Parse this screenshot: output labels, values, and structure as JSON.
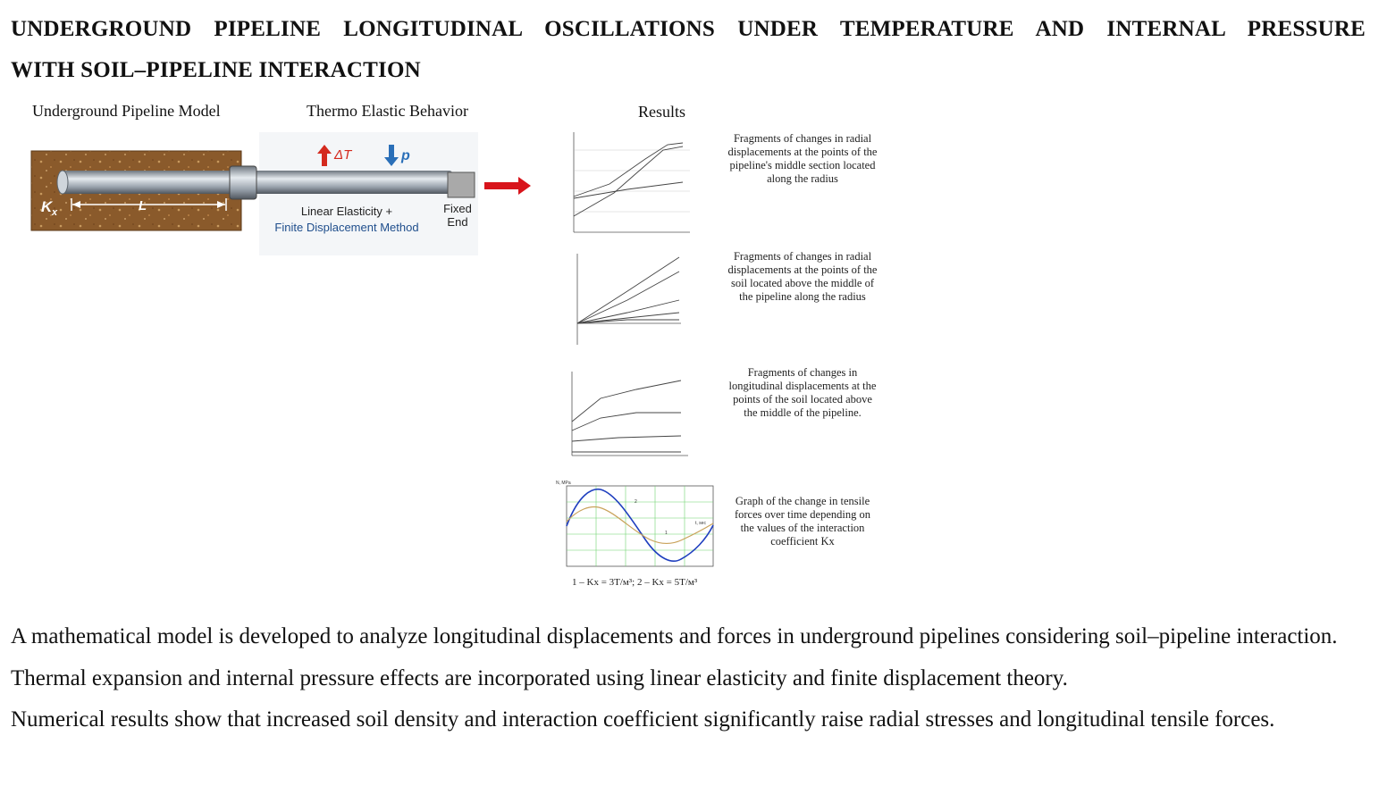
{
  "title": {
    "line1": "UNDERGROUND PIPELINE LONGITUDINAL OSCILLATIONS UNDER TEMPERATURE AND INTERNAL PRESSURE",
    "line2": "WITH SOIL–PIPELINE INTERACTION"
  },
  "graphic": {
    "model_label": "Underground Pipeline Model",
    "thermo_label": "Thermo Elastic Behavior",
    "results_label": "Results",
    "kx": "K",
    "kx_sub": "x",
    "length": "L",
    "delta_t": "ΔT",
    "pressure": "p",
    "method_line1": "Linear Elasticity +",
    "method_line2": "Finite Displacement Method",
    "fixed_line1": "Fixed",
    "fixed_line2": "End",
    "colors": {
      "soil": "#8a5a2b",
      "pipe": "#9aa3ad",
      "arrow_up": "#d42a1e",
      "arrow_down": "#2a6fb8",
      "method_blue": "#1f4e8c",
      "result_arrow": "#d8141b"
    }
  },
  "results": [
    {
      "caption": [
        "Fragments of changes in radial",
        "displacements at the points of the",
        "pipeline's middle section located",
        "along the radius"
      ]
    },
    {
      "caption": [
        "Fragments of changes in radial",
        "displacements at the points of the",
        "soil located above the middle of",
        "the pipeline along the radius"
      ]
    },
    {
      "caption": [
        "Fragments of changes in",
        "longitudinal displacements at the",
        "points of the soil located above",
        "the middle of the pipeline."
      ]
    },
    {
      "caption": [
        "Graph of the change in tensile",
        "forces over time depending on",
        "the values of the interaction",
        "coefficient Kx"
      ]
    }
  ],
  "chart4": {
    "ylabel": "N, MPa",
    "xlabel": "t, sec",
    "legend": "1 – Kx = 3T/м³; 2 – Kx = 5T/м³",
    "curve1_label": "1",
    "curve2_label": "2",
    "colors": {
      "curve_blue": "#1f3fbf",
      "curve_tan": "#c9a25a",
      "grid": "#6fd36f"
    }
  },
  "abstract": {
    "p1": "A mathematical model is developed to analyze longitudinal displacements and forces in underground pipelines considering soil–pipeline interaction.",
    "p2": "Thermal expansion and internal pressure effects are incorporated using linear elasticity and finite displacement theory.",
    "p3": "Numerical results show that increased soil density and interaction coefficient significantly raise radial stresses and longitudinal tensile forces."
  }
}
